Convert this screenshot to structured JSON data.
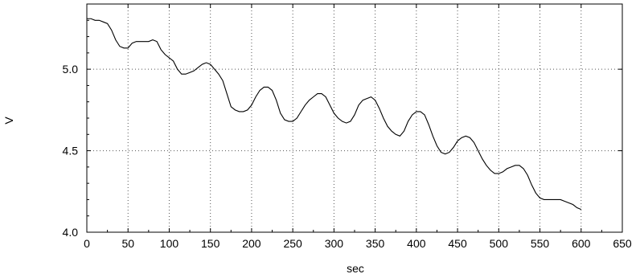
{
  "chart_data": {
    "type": "line",
    "title": "",
    "xlabel": "sec",
    "ylabel": "V",
    "xlim": [
      0,
      650
    ],
    "ylim": [
      4.0,
      5.4
    ],
    "x_ticks": [
      0,
      50,
      100,
      150,
      200,
      250,
      300,
      350,
      400,
      450,
      500,
      550,
      600,
      650
    ],
    "x_tick_labels": [
      "0",
      "50",
      "100",
      "150",
      "200",
      "250",
      "300",
      "350",
      "400",
      "450",
      "500",
      "550",
      "600",
      "650"
    ],
    "y_ticks": [
      4.0,
      4.5,
      5.0
    ],
    "y_tick_labels": [
      "4.0",
      "4.5",
      "5.0"
    ],
    "grid": true,
    "legend": "none",
    "series": [
      {
        "color": "#000000",
        "points": [
          [
            0,
            5.31
          ],
          [
            5,
            5.31
          ],
          [
            10,
            5.3
          ],
          [
            15,
            5.3
          ],
          [
            20,
            5.29
          ],
          [
            25,
            5.28
          ],
          [
            30,
            5.24
          ],
          [
            35,
            5.18
          ],
          [
            40,
            5.14
          ],
          [
            45,
            5.13
          ],
          [
            50,
            5.13
          ],
          [
            55,
            5.16
          ],
          [
            60,
            5.17
          ],
          [
            65,
            5.17
          ],
          [
            70,
            5.17
          ],
          [
            75,
            5.17
          ],
          [
            80,
            5.18
          ],
          [
            85,
            5.17
          ],
          [
            90,
            5.12
          ],
          [
            95,
            5.09
          ],
          [
            100,
            5.07
          ],
          [
            105,
            5.05
          ],
          [
            110,
            5.0
          ],
          [
            115,
            4.97
          ],
          [
            120,
            4.97
          ],
          [
            125,
            4.98
          ],
          [
            130,
            4.99
          ],
          [
            135,
            5.01
          ],
          [
            140,
            5.03
          ],
          [
            145,
            5.04
          ],
          [
            150,
            5.03
          ],
          [
            155,
            5.0
          ],
          [
            160,
            4.97
          ],
          [
            165,
            4.93
          ],
          [
            170,
            4.85
          ],
          [
            175,
            4.77
          ],
          [
            180,
            4.75
          ],
          [
            185,
            4.74
          ],
          [
            190,
            4.74
          ],
          [
            195,
            4.75
          ],
          [
            200,
            4.78
          ],
          [
            205,
            4.83
          ],
          [
            210,
            4.87
          ],
          [
            215,
            4.89
          ],
          [
            220,
            4.89
          ],
          [
            225,
            4.87
          ],
          [
            230,
            4.81
          ],
          [
            235,
            4.73
          ],
          [
            240,
            4.69
          ],
          [
            245,
            4.68
          ],
          [
            250,
            4.68
          ],
          [
            255,
            4.7
          ],
          [
            260,
            4.74
          ],
          [
            265,
            4.78
          ],
          [
            270,
            4.81
          ],
          [
            275,
            4.83
          ],
          [
            280,
            4.85
          ],
          [
            285,
            4.85
          ],
          [
            290,
            4.83
          ],
          [
            295,
            4.78
          ],
          [
            300,
            4.73
          ],
          [
            305,
            4.7
          ],
          [
            310,
            4.68
          ],
          [
            315,
            4.67
          ],
          [
            320,
            4.68
          ],
          [
            325,
            4.72
          ],
          [
            330,
            4.78
          ],
          [
            335,
            4.81
          ],
          [
            340,
            4.82
          ],
          [
            345,
            4.83
          ],
          [
            350,
            4.81
          ],
          [
            355,
            4.76
          ],
          [
            360,
            4.7
          ],
          [
            365,
            4.65
          ],
          [
            370,
            4.62
          ],
          [
            375,
            4.6
          ],
          [
            380,
            4.59
          ],
          [
            385,
            4.62
          ],
          [
            390,
            4.68
          ],
          [
            395,
            4.72
          ],
          [
            400,
            4.74
          ],
          [
            405,
            4.74
          ],
          [
            410,
            4.72
          ],
          [
            415,
            4.66
          ],
          [
            420,
            4.59
          ],
          [
            425,
            4.53
          ],
          [
            430,
            4.49
          ],
          [
            435,
            4.48
          ],
          [
            440,
            4.49
          ],
          [
            445,
            4.52
          ],
          [
            450,
            4.56
          ],
          [
            455,
            4.58
          ],
          [
            460,
            4.59
          ],
          [
            465,
            4.58
          ],
          [
            470,
            4.55
          ],
          [
            475,
            4.5
          ],
          [
            480,
            4.45
          ],
          [
            485,
            4.41
          ],
          [
            490,
            4.38
          ],
          [
            495,
            4.36
          ],
          [
            500,
            4.36
          ],
          [
            505,
            4.37
          ],
          [
            510,
            4.39
          ],
          [
            515,
            4.4
          ],
          [
            520,
            4.41
          ],
          [
            525,
            4.41
          ],
          [
            530,
            4.39
          ],
          [
            535,
            4.35
          ],
          [
            540,
            4.29
          ],
          [
            545,
            4.24
          ],
          [
            550,
            4.21
          ],
          [
            555,
            4.2
          ],
          [
            560,
            4.2
          ],
          [
            565,
            4.2
          ],
          [
            570,
            4.2
          ],
          [
            575,
            4.2
          ],
          [
            580,
            4.19
          ],
          [
            585,
            4.18
          ],
          [
            590,
            4.17
          ],
          [
            595,
            4.15
          ],
          [
            600,
            4.14
          ]
        ]
      }
    ]
  }
}
